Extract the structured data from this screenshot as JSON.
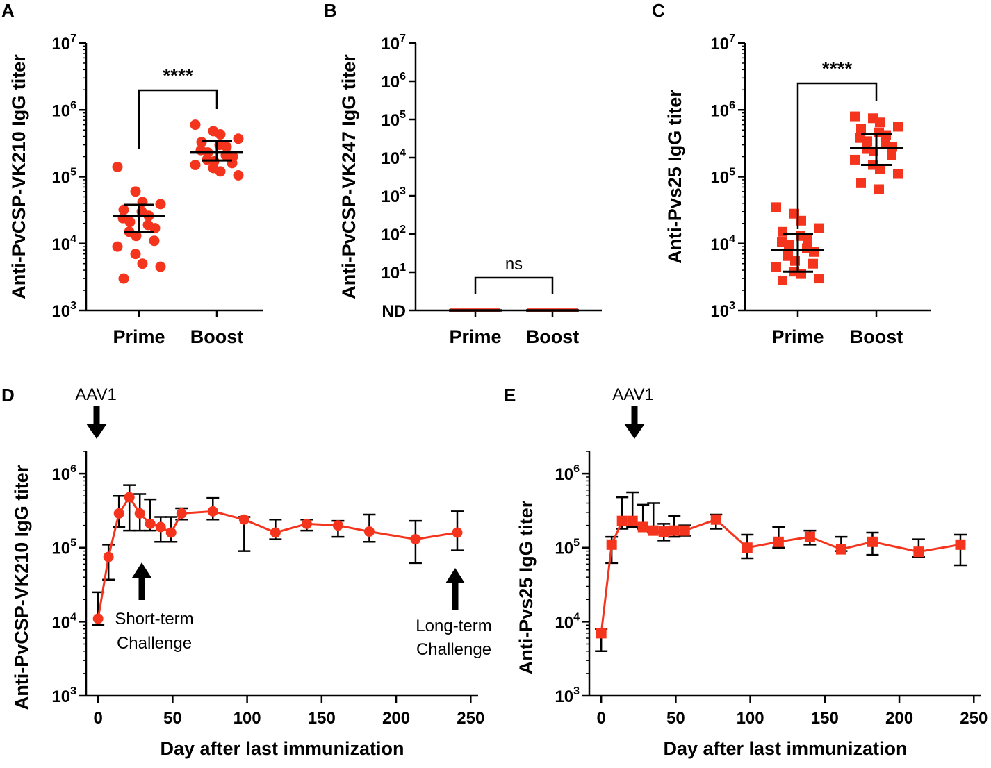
{
  "colors": {
    "accent": "#f5341d",
    "axis": "#000000"
  },
  "chart_data": [
    {
      "panel": "A",
      "type": "scatter",
      "ylabel": "Anti-PvCSP-VK210 IgG titer",
      "yscale": "log",
      "ylim": [
        1000,
        10000000
      ],
      "yticks": [
        1000,
        10000,
        100000,
        1000000,
        10000000
      ],
      "ytick_labels": [
        {
          "base": "10",
          "exp": "3"
        },
        {
          "base": "10",
          "exp": "4"
        },
        {
          "base": "10",
          "exp": "5"
        },
        {
          "base": "10",
          "exp": "6"
        },
        {
          "base": "10",
          "exp": "7"
        }
      ],
      "categories": [
        "Prime",
        "Boost"
      ],
      "marker": "circle",
      "groups": [
        {
          "name": "Prime",
          "center": 26000,
          "lower": 15000,
          "upper": 38000,
          "points": [
            140000,
            60000,
            42000,
            39000,
            32000,
            30000,
            26000,
            24000,
            21000,
            19000,
            17000,
            15000,
            13000,
            11000,
            9000,
            7000,
            5000,
            4500,
            3000
          ]
        },
        {
          "name": "Boost",
          "center": 230000,
          "lower": 175000,
          "upper": 340000,
          "points": [
            600000,
            480000,
            430000,
            370000,
            330000,
            300000,
            280000,
            250000,
            230000,
            210000,
            200000,
            180000,
            170000,
            160000,
            150000,
            135000,
            120000,
            105000
          ]
        }
      ],
      "significance": "****"
    },
    {
      "panel": "B",
      "type": "scatter",
      "ylabel": "Anti-PvCSP-VK247 IgG titer",
      "yscale": "log",
      "ylim": [
        1,
        10000000
      ],
      "yticks": [
        1,
        10,
        100,
        1000,
        10000,
        100000,
        1000000,
        10000000
      ],
      "ytick_labels": [
        {
          "base": "ND",
          "exp": ""
        },
        {
          "base": "10",
          "exp": "1"
        },
        {
          "base": "10",
          "exp": "2"
        },
        {
          "base": "10",
          "exp": "3"
        },
        {
          "base": "10",
          "exp": "4"
        },
        {
          "base": "10",
          "exp": "5"
        },
        {
          "base": "10",
          "exp": "6"
        },
        {
          "base": "10",
          "exp": "7"
        }
      ],
      "categories": [
        "Prime",
        "Boost"
      ],
      "marker": "none-detected",
      "groups": [
        {
          "name": "Prime",
          "center": 1,
          "points": []
        },
        {
          "name": "Boost",
          "center": 1,
          "points": []
        }
      ],
      "significance": "ns"
    },
    {
      "panel": "C",
      "type": "scatter",
      "ylabel": "Anti-Pvs25 IgG titer",
      "yscale": "log",
      "ylim": [
        1000,
        10000000
      ],
      "yticks": [
        1000,
        10000,
        100000,
        1000000,
        10000000
      ],
      "ytick_labels": [
        {
          "base": "10",
          "exp": "3"
        },
        {
          "base": "10",
          "exp": "4"
        },
        {
          "base": "10",
          "exp": "5"
        },
        {
          "base": "10",
          "exp": "6"
        },
        {
          "base": "10",
          "exp": "7"
        }
      ],
      "categories": [
        "Prime",
        "Boost"
      ],
      "marker": "square",
      "groups": [
        {
          "name": "Prime",
          "center": 8000,
          "lower": 3800,
          "upper": 14000,
          "points": [
            35000,
            28000,
            22000,
            17000,
            15000,
            13000,
            11500,
            10500,
            9500,
            8500,
            7500,
            6500,
            5500,
            5000,
            4500,
            3800,
            3500,
            3000,
            2800
          ]
        },
        {
          "name": "Boost",
          "center": 270000,
          "lower": 150000,
          "upper": 440000,
          "points": [
            800000,
            750000,
            650000,
            560000,
            520000,
            460000,
            420000,
            380000,
            340000,
            310000,
            280000,
            260000,
            240000,
            210000,
            180000,
            150000,
            130000,
            110000,
            80000,
            65000
          ]
        }
      ],
      "significance": "****"
    },
    {
      "panel": "D",
      "type": "line",
      "ylabel": "Anti-PvCSP-VK210 IgG titer",
      "xlabel": "Day after last immunization",
      "yscale": "log",
      "ylim": [
        1000,
        2000000
      ],
      "xlim": [
        -8,
        255
      ],
      "xticks": [
        0,
        50,
        100,
        150,
        200,
        250
      ],
      "yticks": [
        1000,
        10000,
        100000,
        1000000
      ],
      "ytick_labels": [
        {
          "base": "10",
          "exp": "3"
        },
        {
          "base": "10",
          "exp": "4"
        },
        {
          "base": "10",
          "exp": "5"
        },
        {
          "base": "10",
          "exp": "6"
        }
      ],
      "marker": "circle",
      "x": [
        0,
        7,
        14,
        21,
        28,
        35,
        42,
        49,
        56,
        77,
        98,
        119,
        140,
        161,
        182,
        213,
        241
      ],
      "y": [
        11000,
        75000,
        290000,
        480000,
        290000,
        210000,
        190000,
        160000,
        290000,
        310000,
        240000,
        160000,
        210000,
        200000,
        165000,
        130000,
        160000
      ],
      "err_upper": [
        25000,
        110000,
        500000,
        700000,
        530000,
        450000,
        260000,
        260000,
        340000,
        470000,
        260000,
        240000,
        240000,
        230000,
        280000,
        230000,
        310000
      ],
      "err_lower": [
        9000,
        37000,
        190000,
        170000,
        170000,
        170000,
        120000,
        120000,
        240000,
        240000,
        90000,
        130000,
        170000,
        140000,
        120000,
        62000,
        92000
      ],
      "annotations": {
        "aav": "AAV1",
        "short_line1": "Short-term",
        "short_line2": "Challenge",
        "long_line1": "Long-term",
        "long_line2": "Challenge"
      }
    },
    {
      "panel": "E",
      "type": "line",
      "ylabel": "Anti-Pvs25 IgG titer",
      "xlabel": "Day after last immunization",
      "yscale": "log",
      "ylim": [
        1000,
        2000000
      ],
      "xlim": [
        -8,
        255
      ],
      "xticks": [
        0,
        50,
        100,
        150,
        200,
        250
      ],
      "yticks": [
        1000,
        10000,
        100000,
        1000000
      ],
      "ytick_labels": [
        {
          "base": "10",
          "exp": "3"
        },
        {
          "base": "10",
          "exp": "4"
        },
        {
          "base": "10",
          "exp": "5"
        },
        {
          "base": "10",
          "exp": "6"
        }
      ],
      "marker": "square",
      "x": [
        0,
        7,
        14,
        21,
        28,
        35,
        42,
        49,
        56,
        77,
        98,
        119,
        140,
        161,
        182,
        213,
        241
      ],
      "y": [
        7000,
        110000,
        230000,
        230000,
        190000,
        170000,
        165000,
        170000,
        170000,
        240000,
        100000,
        120000,
        140000,
        95000,
        120000,
        88000,
        110000
      ],
      "err_upper": [
        8000,
        140000,
        480000,
        560000,
        380000,
        400000,
        210000,
        270000,
        200000,
        280000,
        150000,
        190000,
        170000,
        140000,
        160000,
        130000,
        150000
      ],
      "err_lower": [
        4000,
        62000,
        180000,
        190000,
        180000,
        160000,
        125000,
        140000,
        145000,
        180000,
        72000,
        100000,
        110000,
        90000,
        80000,
        75000,
        58000
      ],
      "annotations": {
        "aav": "AAV1"
      }
    }
  ]
}
